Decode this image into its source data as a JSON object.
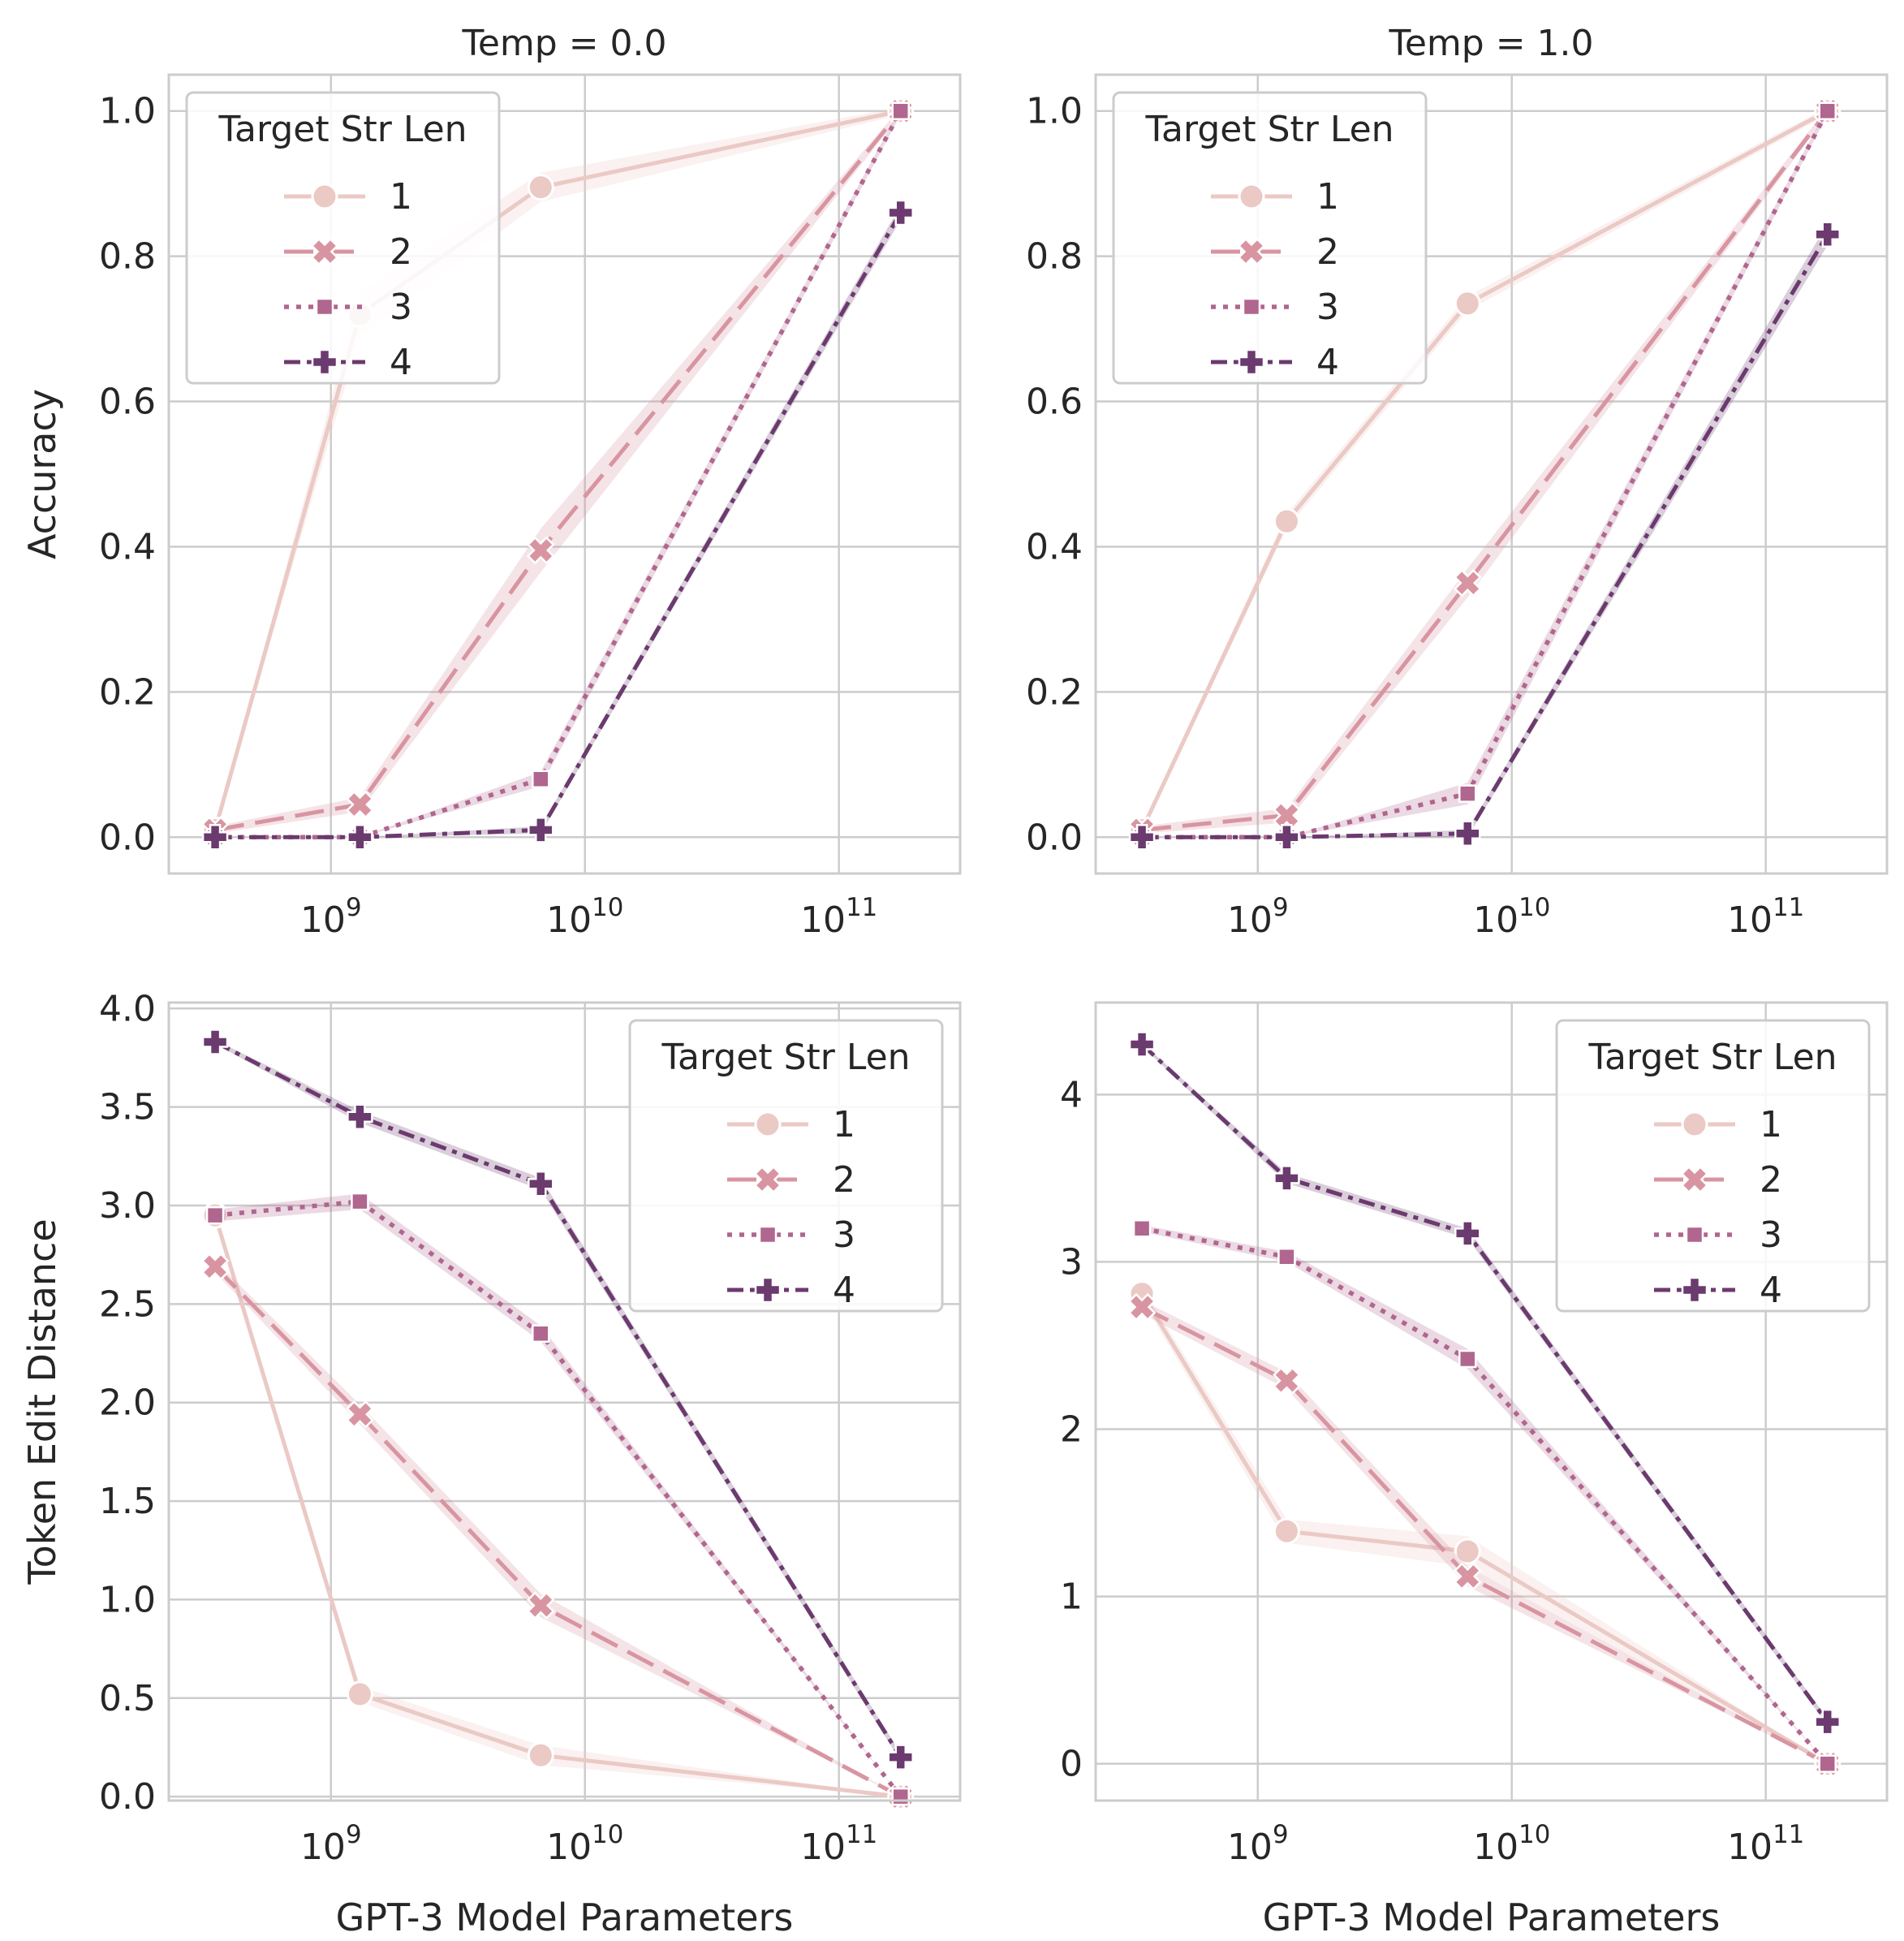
{
  "figure": {
    "xlabel": "GPT-3 Model Parameters",
    "legend_title": "Target Str Len",
    "series_names": [
      "1",
      "2",
      "3",
      "4"
    ],
    "colors": [
      "#ebc9c5",
      "#d895a1",
      "#b0668e",
      "#6b3a6e"
    ],
    "x_tick_labels": [
      "10^9",
      "10^10",
      "10^11"
    ]
  },
  "chart_data": [
    {
      "type": "line",
      "title": "Temp = 0.0",
      "xlabel": "",
      "ylabel": "Accuracy",
      "xscale": "log",
      "xlim": [
        230000000,
        300000000000
      ],
      "ylim": [
        -0.05,
        1.05
      ],
      "xticks": [
        1000000000,
        10000000000,
        100000000000
      ],
      "yticks": [
        0.0,
        0.2,
        0.4,
        0.6,
        0.8,
        1.0
      ],
      "ytick_labels": [
        "0.0",
        "0.2",
        "0.4",
        "0.6",
        "0.8",
        "1.0"
      ],
      "legend": "upper-left",
      "grid": true,
      "x": [
        350000000,
        1300000000,
        6700000000,
        175000000000
      ],
      "series": [
        {
          "name": "1",
          "values": [
            0.01,
            0.72,
            0.895,
            1.0
          ],
          "band": [
            0.0,
            0.03,
            0.02,
            0.005
          ]
        },
        {
          "name": "2",
          "values": [
            0.01,
            0.045,
            0.395,
            1.0
          ],
          "band": [
            0.005,
            0.01,
            0.03,
            0.005
          ]
        },
        {
          "name": "3",
          "values": [
            0.0,
            0.0,
            0.08,
            1.0
          ],
          "band": [
            0.0,
            0.0,
            0.01,
            0.005
          ]
        },
        {
          "name": "4",
          "values": [
            0.0,
            0.0,
            0.01,
            0.86
          ],
          "band": [
            0.0,
            0.0,
            0.005,
            0.01
          ]
        }
      ]
    },
    {
      "type": "line",
      "title": "Temp = 1.0",
      "xlabel": "",
      "ylabel": "",
      "xscale": "log",
      "xlim": [
        230000000,
        300000000000
      ],
      "ylim": [
        -0.05,
        1.05
      ],
      "xticks": [
        1000000000,
        10000000000,
        100000000000
      ],
      "yticks": [
        0.0,
        0.2,
        0.4,
        0.6,
        0.8,
        1.0
      ],
      "ytick_labels": [
        "0.0",
        "0.2",
        "0.4",
        "0.6",
        "0.8",
        "1.0"
      ],
      "legend": "upper-left",
      "grid": true,
      "x": [
        350000000,
        1300000000,
        6700000000,
        175000000000
      ],
      "series": [
        {
          "name": "1",
          "values": [
            0.01,
            0.435,
            0.735,
            1.0
          ],
          "band": [
            0.005,
            0.01,
            0.01,
            0.005
          ]
        },
        {
          "name": "2",
          "values": [
            0.01,
            0.03,
            0.35,
            1.0
          ],
          "band": [
            0.005,
            0.01,
            0.02,
            0.005
          ]
        },
        {
          "name": "3",
          "values": [
            0.0,
            0.0,
            0.06,
            1.0
          ],
          "band": [
            0.0,
            0.0,
            0.015,
            0.005
          ]
        },
        {
          "name": "4",
          "values": [
            0.0,
            0.0,
            0.005,
            0.83
          ],
          "band": [
            0.0,
            0.0,
            0.005,
            0.015
          ]
        }
      ]
    },
    {
      "type": "line",
      "title": "",
      "xlabel": "GPT-3 Model Parameters",
      "ylabel": "Token Edit Distance",
      "xscale": "log",
      "xlim": [
        230000000,
        300000000000
      ],
      "ylim": [
        -0.02,
        4.03
      ],
      "xticks": [
        1000000000,
        10000000000,
        100000000000
      ],
      "yticks": [
        0.0,
        0.5,
        1.0,
        1.5,
        2.0,
        2.5,
        3.0,
        3.5,
        4.0
      ],
      "ytick_labels": [
        "0.0",
        "0.5",
        "1.0",
        "1.5",
        "2.0",
        "2.5",
        "3.0",
        "3.5",
        "4.0"
      ],
      "legend": "upper-right",
      "grid": true,
      "x": [
        350000000,
        1300000000,
        6700000000,
        175000000000
      ],
      "series": [
        {
          "name": "1",
          "values": [
            2.95,
            0.52,
            0.21,
            0.0
          ],
          "band": [
            0.02,
            0.04,
            0.05,
            0.0
          ]
        },
        {
          "name": "2",
          "values": [
            2.69,
            1.94,
            0.97,
            0.0
          ],
          "band": [
            0.03,
            0.05,
            0.06,
            0.0
          ]
        },
        {
          "name": "3",
          "values": [
            2.95,
            3.02,
            2.35,
            0.0
          ],
          "band": [
            0.03,
            0.04,
            0.04,
            0.0
          ]
        },
        {
          "name": "4",
          "values": [
            3.83,
            3.45,
            3.11,
            0.2
          ],
          "band": [
            0.01,
            0.03,
            0.03,
            0.02
          ]
        }
      ]
    },
    {
      "type": "line",
      "title": "",
      "xlabel": "GPT-3 Model Parameters",
      "ylabel": "",
      "xscale": "log",
      "xlim": [
        230000000,
        300000000000
      ],
      "ylim": [
        -0.22,
        4.55
      ],
      "xticks": [
        1000000000,
        10000000000,
        100000000000
      ],
      "yticks": [
        0,
        1,
        2,
        3,
        4
      ],
      "ytick_labels": [
        "0",
        "1",
        "2",
        "3",
        "4"
      ],
      "legend": "upper-right",
      "grid": true,
      "x": [
        350000000,
        1300000000,
        6700000000,
        175000000000
      ],
      "series": [
        {
          "name": "1",
          "values": [
            2.81,
            1.39,
            1.27,
            0.0
          ],
          "band": [
            0.04,
            0.07,
            0.09,
            0.0
          ]
        },
        {
          "name": "2",
          "values": [
            2.73,
            2.29,
            1.12,
            0.0
          ],
          "band": [
            0.04,
            0.05,
            0.06,
            0.0
          ]
        },
        {
          "name": "3",
          "values": [
            3.2,
            3.03,
            2.42,
            0.0
          ],
          "band": [
            0.02,
            0.03,
            0.06,
            0.0
          ]
        },
        {
          "name": "4",
          "values": [
            4.3,
            3.5,
            3.17,
            0.25
          ],
          "band": [
            0.01,
            0.03,
            0.03,
            0.02
          ]
        }
      ]
    }
  ]
}
